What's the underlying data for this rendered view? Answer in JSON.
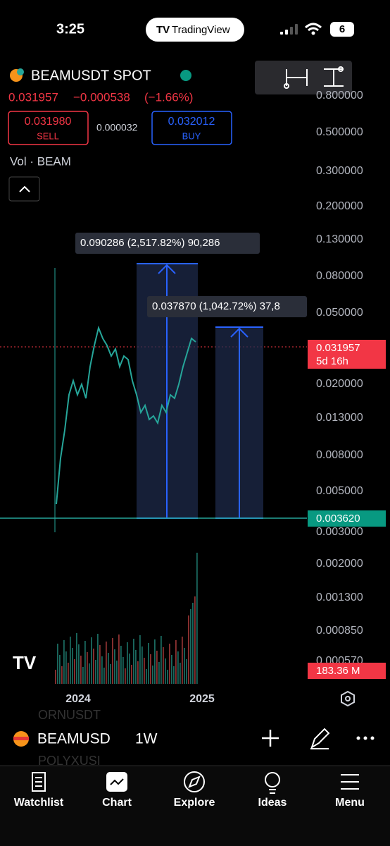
{
  "status_bar": {
    "time": "3:25",
    "app": "TradingView",
    "battery": "6"
  },
  "header": {
    "symbol": "BEAMUSDT SPOT",
    "price": "0.031957",
    "change": "−0.000538",
    "change_pct": "(−1.66%)",
    "sell_price": "0.031980",
    "sell_label": "SELL",
    "spread": "0.000032",
    "buy_price": "0.032012",
    "buy_label": "BUY",
    "volume_label": "Vol · BEAM"
  },
  "price_axis": [
    "0.800000",
    "0.500000",
    "0.300000",
    "0.200000",
    "0.130000",
    "0.080000",
    "0.050000",
    "0.020000",
    "0.013000",
    "0.008000",
    "0.005000",
    "0.003000",
    "0.002000",
    "0.001300",
    "0.000850",
    "0.000570"
  ],
  "tags": {
    "last_price": "0.031957",
    "countdown": "5d 16h",
    "level": "0.003620",
    "volume": "183.36 M"
  },
  "measurements": [
    "0.090286 (2,517.82%) 90,286",
    "0.037870 (1,042.72%) 37,8"
  ],
  "time_axis": [
    "2024",
    "2025"
  ],
  "toolbar": {
    "symbol": "BEAMUSD",
    "interval": "1W",
    "behind_above": "ORNUSDT",
    "behind_below": "POLYXUSI"
  },
  "tabs": [
    "Watchlist",
    "Chart",
    "Explore",
    "Ideas",
    "Menu"
  ]
}
